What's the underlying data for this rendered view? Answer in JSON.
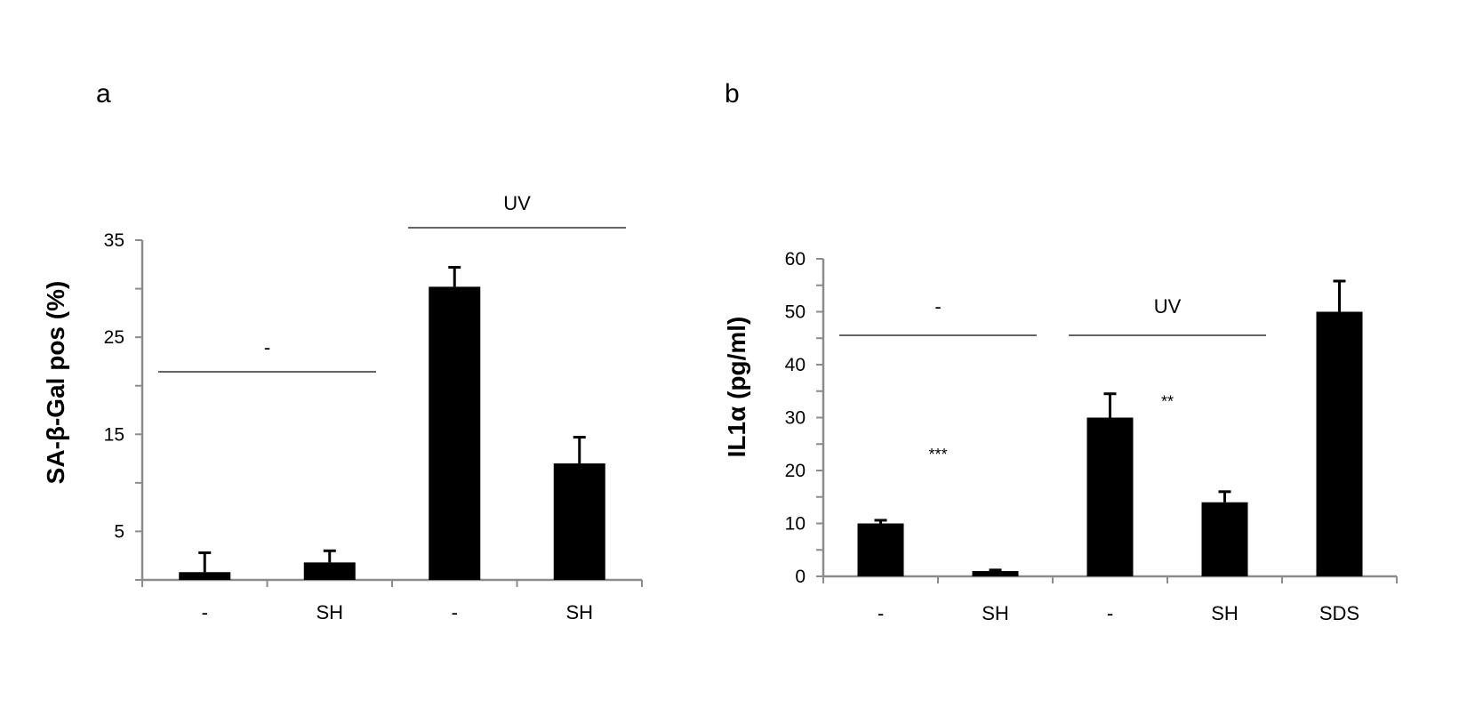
{
  "chart_data": [
    {
      "type": "bar",
      "panel_label": "a",
      "ylabel": "SA-β-Gal pos  (%)",
      "ylim": [
        0,
        35
      ],
      "yticks": [
        "5",
        "15",
        "25",
        "35"
      ],
      "categories": [
        "-",
        "SH",
        "-",
        "SH"
      ],
      "values": [
        0.8,
        1.8,
        30.2,
        12.0
      ],
      "errors": [
        2.0,
        1.2,
        2.0,
        2.7
      ],
      "groups": [
        {
          "label": "-",
          "from": 0,
          "to": 1
        },
        {
          "label": "UV",
          "from": 2,
          "to": 3
        }
      ],
      "annotations": [],
      "color": "#000000",
      "grid": false
    },
    {
      "type": "bar",
      "panel_label": "b",
      "ylabel": "IL1α (pg/ml)",
      "ylim": [
        0,
        60
      ],
      "yticks": [
        "0",
        "10",
        "20",
        "30",
        "40",
        "50",
        "60"
      ],
      "categories": [
        "-",
        "SH",
        "-",
        "SH",
        "SDS"
      ],
      "values": [
        10.0,
        1.0,
        30.0,
        14.0,
        50.0
      ],
      "errors": [
        0.6,
        0.2,
        4.5,
        2.0,
        5.8
      ],
      "groups": [
        {
          "label": "-",
          "from": 0,
          "to": 1
        },
        {
          "label": "UV",
          "from": 2,
          "to": 3
        }
      ],
      "annotations": [
        {
          "text": "***",
          "category": 1,
          "y": 22
        },
        {
          "text": "**",
          "category": 3,
          "y": 32
        }
      ],
      "color": "#000000",
      "grid": false
    }
  ]
}
